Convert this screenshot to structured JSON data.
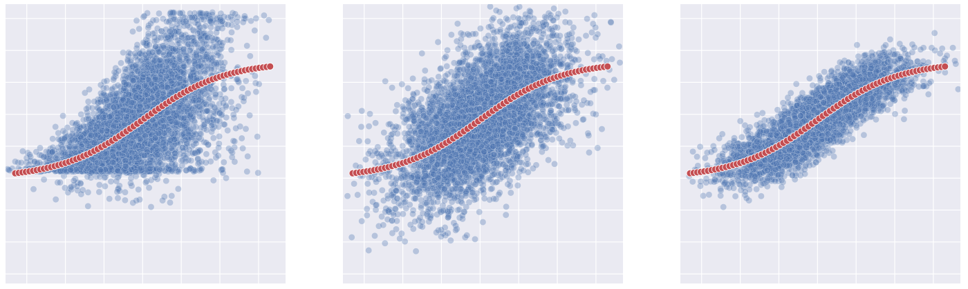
{
  "figure": {
    "background": "#ffffff",
    "axes_facecolor": "#eaeaf2",
    "grid_color": "#ffffff",
    "scatter_color": "#4c72b0",
    "curve_color": "#c44e52",
    "curve_edge_color": "#ffffff"
  },
  "chart_data": [
    {
      "type": "scatter",
      "title": "",
      "xlabel": "",
      "ylabel": "",
      "xlim": [
        -0.55,
        6.7
      ],
      "ylim": [
        -5.3,
        3.45
      ],
      "grid": true,
      "x_gridlines": [
        0,
        1,
        2,
        3,
        4,
        5,
        6
      ],
      "y_gridlines": [
        -5,
        -4,
        -3,
        -2,
        -1,
        0,
        1,
        2,
        3
      ],
      "point_count": 5000,
      "series": [
        {
          "kind": "scatter_cloud",
          "shape": "heteroscedastic_clipped_floor",
          "x_center": 2.85,
          "x_spread": 1.05,
          "floor_y": -1.8,
          "upper_y_max": 3.2,
          "lower_y_min": -4.3
        },
        {
          "kind": "logistic_curve",
          "x": [
            -0.3,
            6.3
          ],
          "y_min": -2.0,
          "y_max": 1.65,
          "midpoint": 3.0,
          "steepness": 0.95,
          "point_count": 72
        }
      ]
    },
    {
      "type": "scatter",
      "title": "",
      "xlabel": "",
      "ylabel": "",
      "xlim": [
        -0.55,
        6.7
      ],
      "ylim": [
        -5.3,
        3.45
      ],
      "grid": true,
      "x_gridlines": [
        0,
        1,
        2,
        3,
        4,
        5,
        6
      ],
      "y_gridlines": [
        -5,
        -4,
        -3,
        -2,
        -1,
        0,
        1,
        2,
        3
      ],
      "point_count": 5000,
      "series": [
        {
          "kind": "scatter_cloud",
          "shape": "wide_symmetric_noise",
          "x_center": 3.05,
          "x_spread": 1.1,
          "noise_sd": 1.05
        },
        {
          "kind": "logistic_curve",
          "x": [
            -0.3,
            6.3
          ],
          "y_min": -2.0,
          "y_max": 1.65,
          "midpoint": 3.0,
          "steepness": 0.95,
          "point_count": 72
        }
      ]
    },
    {
      "type": "scatter",
      "title": "",
      "xlabel": "",
      "ylabel": "",
      "xlim": [
        -0.55,
        6.7
      ],
      "ylim": [
        -5.3,
        3.45
      ],
      "grid": true,
      "x_gridlines": [
        0,
        1,
        2,
        3,
        4,
        5,
        6
      ],
      "y_gridlines": [
        -5,
        -4,
        -3,
        -2,
        -1,
        0,
        1,
        2,
        3
      ],
      "point_count": 5000,
      "series": [
        {
          "kind": "scatter_cloud",
          "shape": "tight_band_around_curve",
          "x_center": 3.0,
          "x_spread": 1.1,
          "noise_sd": 0.45
        },
        {
          "kind": "logistic_curve",
          "x": [
            -0.3,
            6.3
          ],
          "y_min": -2.0,
          "y_max": 1.65,
          "midpoint": 3.0,
          "steepness": 0.95,
          "point_count": 72
        }
      ]
    }
  ]
}
